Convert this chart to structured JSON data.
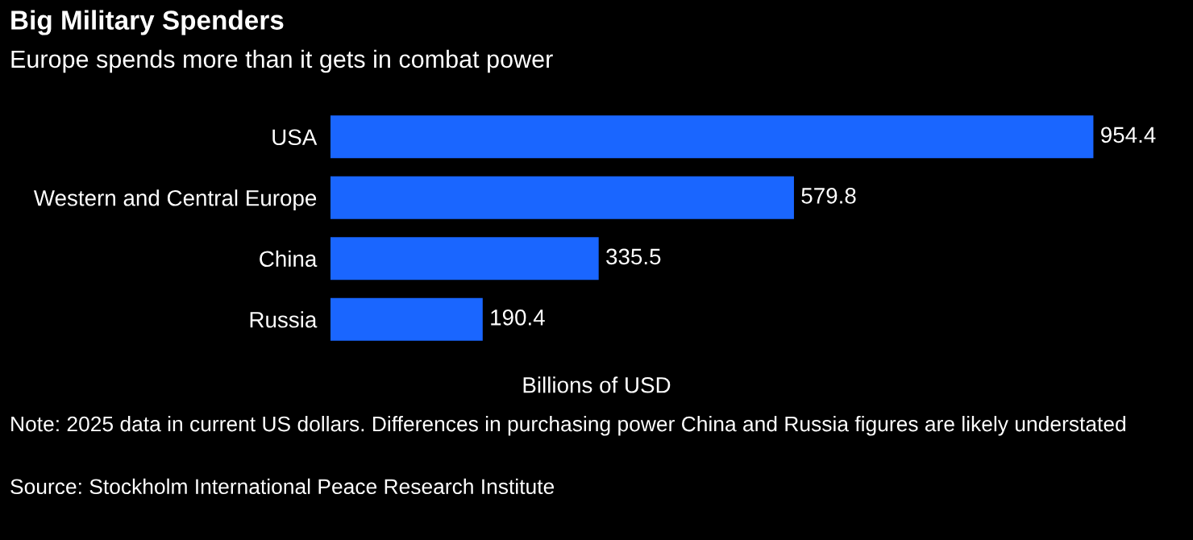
{
  "chart_data": {
    "type": "bar",
    "orientation": "horizontal",
    "title": "Big Military Spenders",
    "subtitle": "Europe spends more than it gets in combat power",
    "categories": [
      "USA",
      "Western and Central Europe",
      "China",
      "Russia"
    ],
    "values": [
      954.4,
      579.8,
      335.5,
      190.4
    ],
    "color": "#1a66ff",
    "data_labels": true,
    "xlabel": "Billions of USD",
    "grid": false,
    "legend": false,
    "annotations": [
      "Note: 2025 data in current US dollars. Differences in purchasing power China and Russia figures are likely understated",
      "Source: Stockholm International Peace Research Institute"
    ]
  }
}
